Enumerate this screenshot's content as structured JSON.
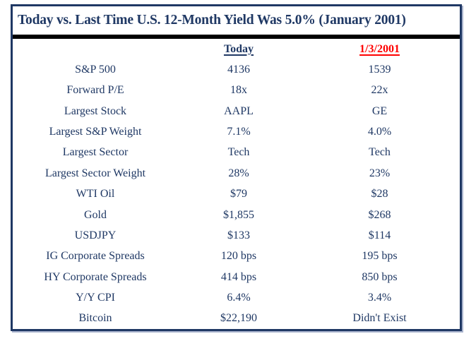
{
  "title": "Today vs. Last Time U.S. 12-Month Yield Was 5.0% (January 2001)",
  "colors": {
    "navy_text": "#1F3864",
    "border_navy": "#1F3864",
    "header_red": "#FF0000",
    "divider_black": "#000000",
    "background": "#FFFFFF"
  },
  "chart_data": {
    "type": "table",
    "title": "Today vs. Last Time U.S. 12-Month Yield Was 5.0% (January 2001)",
    "header": {
      "today": "Today",
      "jan2001": "1/3/2001"
    },
    "rows": [
      {
        "label": "S&P 500",
        "today": "4136",
        "jan2001": "1539"
      },
      {
        "label": "Forward P/E",
        "today": "18x",
        "jan2001": "22x"
      },
      {
        "label": "Largest Stock",
        "today": "AAPL",
        "jan2001": "GE"
      },
      {
        "label": "Largest S&P Weight",
        "today": "7.1%",
        "jan2001": "4.0%"
      },
      {
        "label": "Largest Sector",
        "today": "Tech",
        "jan2001": "Tech"
      },
      {
        "label": "Largest Sector Weight",
        "today": "28%",
        "jan2001": "23%"
      },
      {
        "label": "WTI Oil",
        "today": "$79",
        "jan2001": "$28"
      },
      {
        "label": "Gold",
        "today": "$1,855",
        "jan2001": "$268"
      },
      {
        "label": "USDJPY",
        "today": "$133",
        "jan2001": "$114"
      },
      {
        "label": "IG Corporate Spreads",
        "today": "120 bps",
        "jan2001": "195 bps"
      },
      {
        "label": "HY Corporate Spreads",
        "today": "414 bps",
        "jan2001": "850 bps"
      },
      {
        "label": "Y/Y CPI",
        "today": "6.4%",
        "jan2001": "3.4%"
      },
      {
        "label": "Bitcoin",
        "today": "$22,190",
        "jan2001": "Didn't Exist"
      }
    ]
  }
}
